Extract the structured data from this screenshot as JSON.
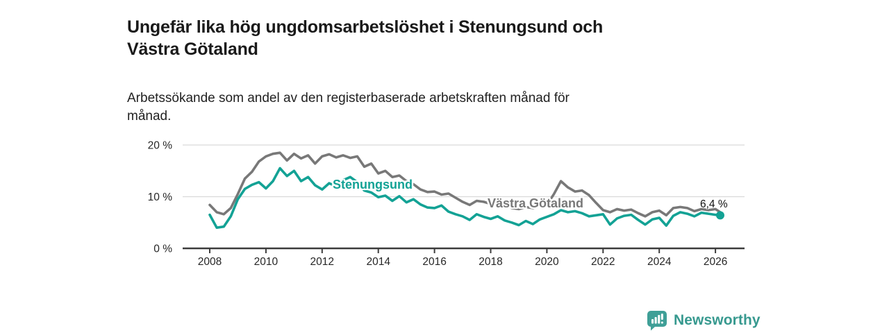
{
  "header": {
    "title": "Ungefär lika hög ungdomsarbetslöshet i Stenungsund och\nVästra Götaland",
    "subtitle": "Arbetssökande som andel av den registerbaserade arbetskraften månad för\nmånad."
  },
  "chart_data": {
    "type": "line",
    "title": "Ungefär lika hög ungdomsarbetslöshet i Stenungsund och Västra Götaland",
    "subtitle": "Arbetssökande som andel av den registerbaserade arbetskraften månad för månad.",
    "xlabel": "",
    "ylabel": "",
    "grid": "horizontal",
    "legend_position": "inline-labels",
    "ylim": [
      0,
      20
    ],
    "xlim": [
      2007.0,
      2027.0
    ],
    "y_ticks": [
      {
        "value": 0,
        "label": "0 %"
      },
      {
        "value": 10,
        "label": "10 %"
      },
      {
        "value": 20,
        "label": "20 %"
      }
    ],
    "x_ticks": [
      2008,
      2010,
      2012,
      2014,
      2016,
      2018,
      2020,
      2022,
      2024,
      2026
    ],
    "x": [
      2008.0,
      2008.25,
      2008.5,
      2008.75,
      2009.0,
      2009.25,
      2009.5,
      2009.75,
      2010.0,
      2010.25,
      2010.5,
      2010.75,
      2011.0,
      2011.25,
      2011.5,
      2011.75,
      2012.0,
      2012.25,
      2012.5,
      2012.75,
      2013.0,
      2013.25,
      2013.5,
      2013.75,
      2014.0,
      2014.25,
      2014.5,
      2014.75,
      2015.0,
      2015.25,
      2015.5,
      2015.75,
      2016.0,
      2016.25,
      2016.5,
      2016.75,
      2017.0,
      2017.25,
      2017.5,
      2017.75,
      2018.0,
      2018.25,
      2018.5,
      2018.75,
      2019.0,
      2019.25,
      2019.5,
      2019.75,
      2020.0,
      2020.25,
      2020.5,
      2020.75,
      2021.0,
      2021.25,
      2021.5,
      2021.75,
      2022.0,
      2022.25,
      2022.5,
      2022.75,
      2023.0,
      2023.25,
      2023.5,
      2023.75,
      2024.0,
      2024.25,
      2024.5,
      2024.75,
      2025.0,
      2025.25,
      2025.5,
      2025.75,
      2026.0,
      2026.17
    ],
    "series": [
      {
        "name": "Västra Götaland",
        "color": "#787878",
        "values": [
          8.4,
          7.0,
          6.6,
          7.8,
          10.5,
          13.5,
          14.8,
          16.8,
          17.8,
          18.3,
          18.5,
          17.0,
          18.3,
          17.4,
          18.0,
          16.4,
          17.8,
          18.2,
          17.6,
          18.0,
          17.5,
          17.8,
          15.8,
          16.4,
          14.5,
          15.0,
          13.8,
          14.1,
          13.0,
          12.4,
          11.4,
          10.9,
          11.0,
          10.4,
          10.6,
          9.8,
          9.0,
          8.4,
          9.2,
          9.0,
          8.6,
          8.2,
          8.4,
          7.8,
          7.6,
          8.0,
          7.8,
          8.2,
          8.4,
          10.5,
          13.0,
          11.8,
          11.0,
          11.2,
          10.3,
          8.8,
          7.4,
          7.0,
          7.6,
          7.3,
          7.5,
          6.8,
          6.2,
          7.0,
          7.3,
          6.4,
          7.8,
          8.0,
          7.8,
          7.2,
          7.6,
          7.4,
          7.6,
          7.0
        ]
      },
      {
        "name": "Stenungsund",
        "color": "#13a295",
        "values": [
          6.5,
          4.0,
          4.2,
          6.2,
          9.5,
          11.5,
          12.3,
          12.8,
          11.6,
          13.0,
          15.5,
          14.0,
          15.0,
          13.0,
          13.8,
          12.2,
          11.4,
          12.6,
          12.0,
          13.2,
          13.8,
          12.8,
          11.2,
          10.8,
          9.9,
          10.2,
          9.2,
          10.1,
          8.9,
          9.5,
          8.5,
          7.9,
          7.8,
          8.3,
          7.1,
          6.6,
          6.2,
          5.5,
          6.6,
          6.1,
          5.7,
          6.2,
          5.4,
          5.0,
          4.5,
          5.3,
          4.7,
          5.6,
          6.1,
          6.6,
          7.4,
          7.0,
          7.2,
          6.8,
          6.2,
          6.4,
          6.6,
          4.6,
          5.8,
          6.3,
          6.5,
          5.5,
          4.6,
          5.6,
          5.9,
          4.4,
          6.3,
          7.0,
          6.7,
          6.2,
          6.9,
          6.7,
          6.5,
          6.4
        ]
      }
    ],
    "end_point": {
      "x": 2026.17,
      "y": 6.4,
      "label": "6,4 %",
      "series": "Stenungsund"
    }
  },
  "labels": {
    "stenungsund": "Stenungsund",
    "vastra_gotaland": "Västra Götaland",
    "end_value": "6,4 %"
  },
  "footer": {
    "brand": "Newsworthy"
  },
  "colors": {
    "accent_teal": "#13a295",
    "series_gray": "#787878",
    "grid": "#d9d9d9",
    "axis": "#3c3c3c",
    "tick_text": "#262626",
    "brand_teal": "#37998f"
  }
}
